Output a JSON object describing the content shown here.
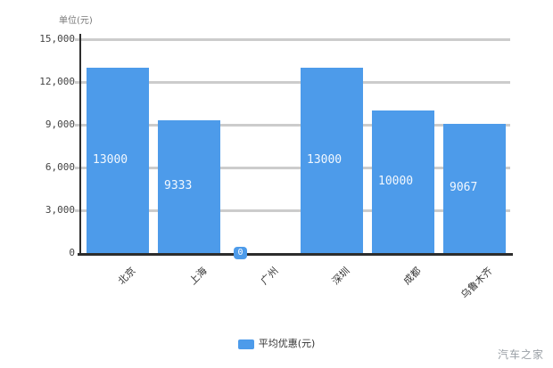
{
  "chart_data": {
    "type": "bar",
    "title": "",
    "unit_label": "单位(元)",
    "categories": [
      "北京",
      "上海",
      "广州",
      "深圳",
      "成都",
      "乌鲁木齐"
    ],
    "values": [
      13000,
      9333,
      0,
      13000,
      10000,
      9067
    ],
    "value_labels": [
      "13000",
      "9333",
      "0",
      "13000",
      "10000",
      "9067"
    ],
    "ylim": [
      0,
      15000
    ],
    "yticks": [
      0,
      3000,
      6000,
      9000,
      12000,
      15000
    ],
    "ytick_labels": [
      "0",
      "3,000",
      "6,000",
      "9,000",
      "12,000",
      "15,000"
    ],
    "grid": true,
    "legend_position": "bottom",
    "series": [
      {
        "name": "平均优惠(元)",
        "color": "#4D9BEA"
      }
    ]
  },
  "legend": {
    "label": "平均优惠(元)"
  },
  "watermark": "汽车之家",
  "colors": {
    "bar": "#4D9BEA",
    "gridline": "#cccccc",
    "axis": "#2d2d2d",
    "tick_text": "#444444",
    "bar_value_text": "#ffffff",
    "watermark_text": "#9aa0a6"
  }
}
